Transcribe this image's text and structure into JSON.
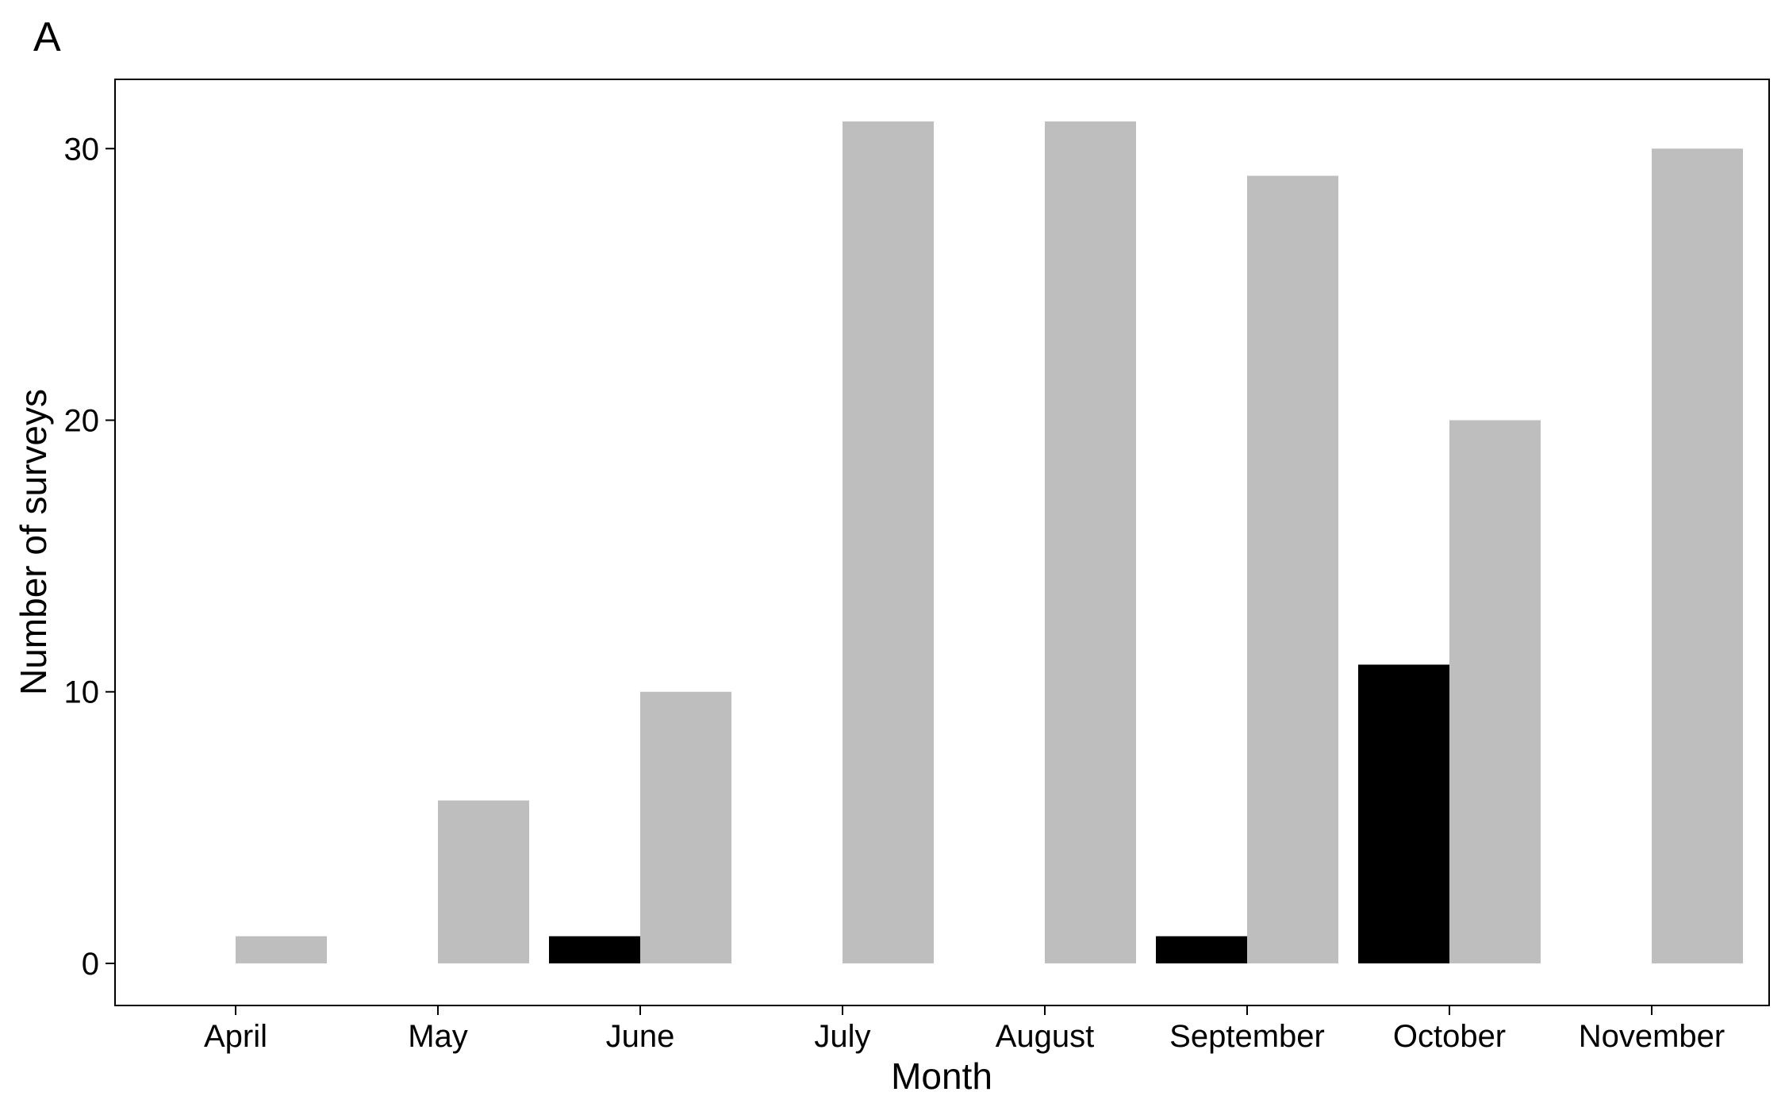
{
  "panel_label": "A",
  "chart_data": {
    "type": "bar",
    "title": "",
    "xlabel": "Month",
    "ylabel": "Number of surveys",
    "categories": [
      "April",
      "May",
      "June",
      "July",
      "August",
      "September",
      "October",
      "November"
    ],
    "series": [
      {
        "values": [
          0,
          0,
          1,
          0,
          0,
          1,
          11,
          0
        ],
        "color": "#000000"
      },
      {
        "values": [
          1,
          6,
          10,
          31,
          31,
          29,
          20,
          30
        ],
        "color": "#bebebe"
      }
    ],
    "ylim": [
      -1.55,
      32.55
    ],
    "yticks": [
      0,
      10,
      20,
      30
    ],
    "grid": false,
    "legend": "none"
  }
}
